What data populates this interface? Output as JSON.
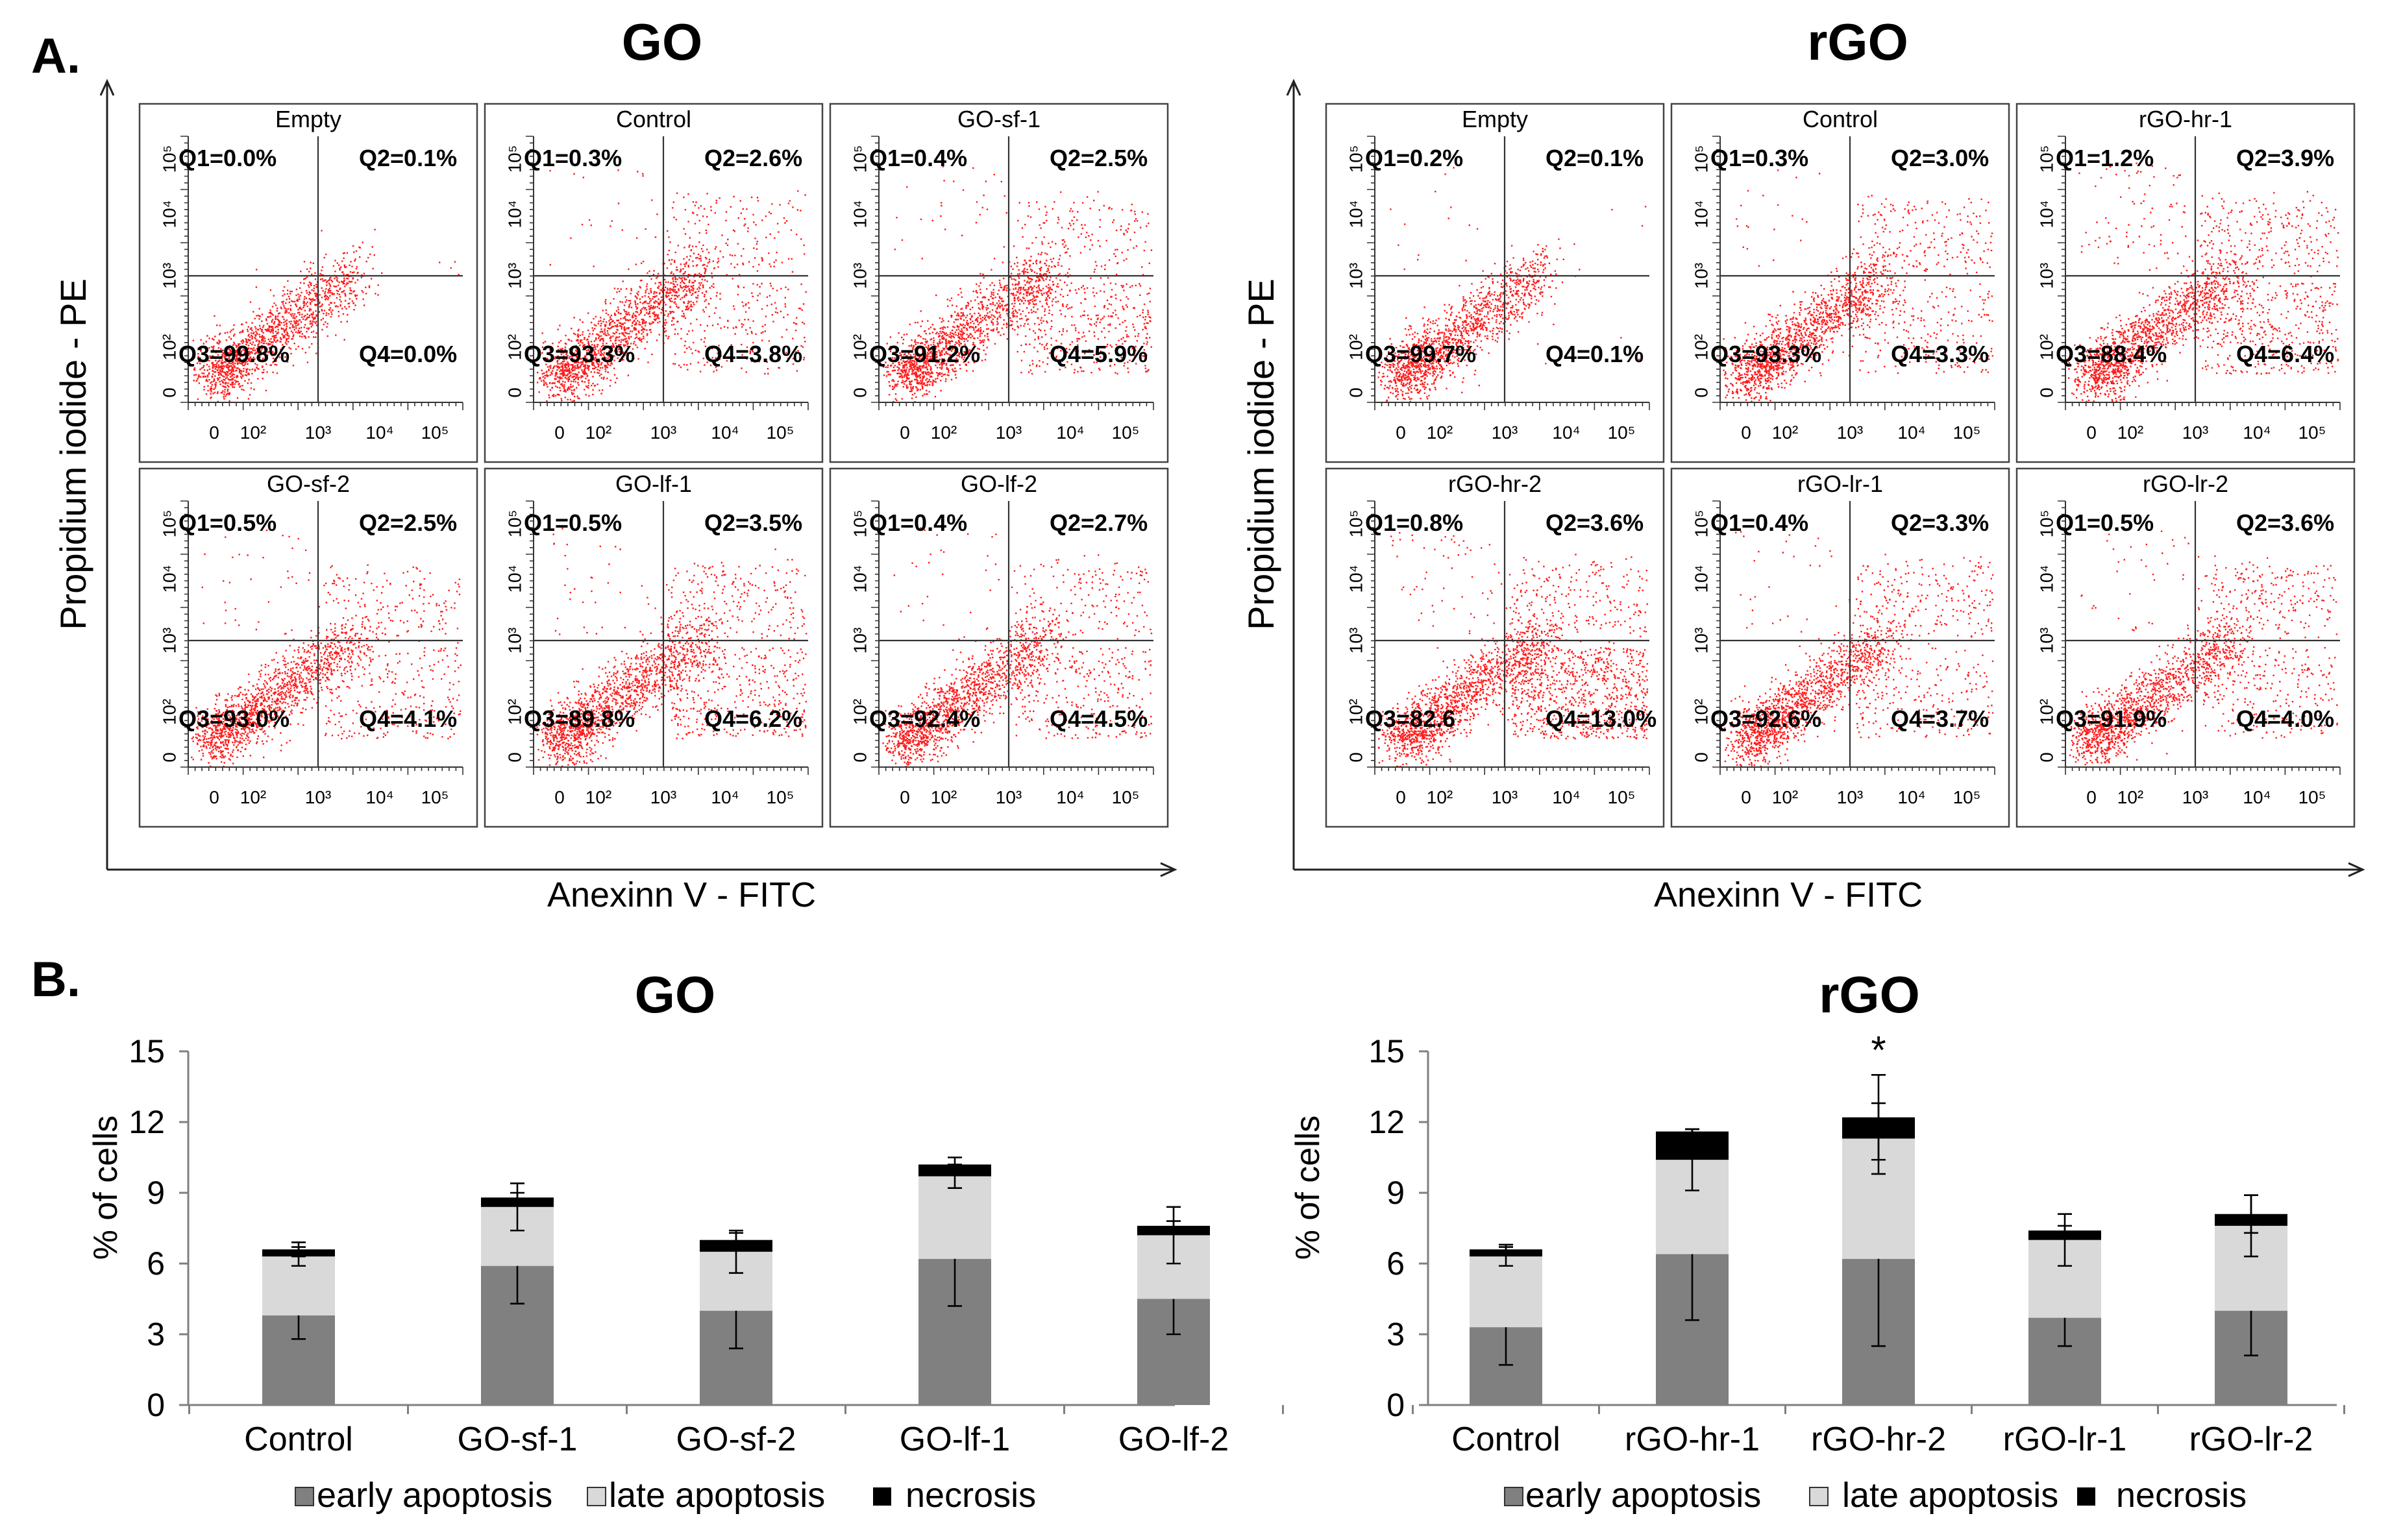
{
  "panel_a": {
    "letter": "A.",
    "tick_labels": [
      "0",
      "10²",
      "10³",
      "10⁴",
      "10⁵"
    ],
    "groups": [
      {
        "title": "GO",
        "ylabel": "Propidium iodide - PE",
        "xlabel": "Anexinn V - FITC",
        "plots": [
          {
            "name": "Empty",
            "q1": "Q1=0.0%",
            "q2": "Q2=0.1%",
            "q3": "Q3=99.8%",
            "q4": "Q4=0.0%"
          },
          {
            "name": "Control",
            "q1": "Q1=0.3%",
            "q2": "Q2=2.6%",
            "q3": "Q3=93.3%",
            "q4": "Q4=3.8%"
          },
          {
            "name": "GO-sf-1",
            "q1": "Q1=0.4%",
            "q2": "Q2=2.5%",
            "q3": "Q3=91.2%",
            "q4": "Q4=5.9%"
          },
          {
            "name": "GO-sf-2",
            "q1": "Q1=0.5%",
            "q2": "Q2=2.5%",
            "q3": "Q3=93.0%",
            "q4": "Q4=4.1%"
          },
          {
            "name": "GO-lf-1",
            "q1": "Q1=0.5%",
            "q2": "Q2=3.5%",
            "q3": "Q3=89.8%",
            "q4": "Q4=6.2%"
          },
          {
            "name": "GO-lf-2",
            "q1": "Q1=0.4%",
            "q2": "Q2=2.7%",
            "q3": "Q3=92.4%",
            "q4": "Q4=4.5%"
          }
        ]
      },
      {
        "title": "rGO",
        "ylabel": "Propidium iodide - PE",
        "xlabel": "Anexinn V - FITC",
        "plots": [
          {
            "name": "Empty",
            "q1": "Q1=0.2%",
            "q2": "Q2=0.1%",
            "q3": "Q3=99.7%",
            "q4": "Q4=0.1%"
          },
          {
            "name": "Control",
            "q1": "Q1=0.3%",
            "q2": "Q2=3.0%",
            "q3": "Q3=93.3%",
            "q4": "Q4=3.3%"
          },
          {
            "name": "rGO-hr-1",
            "q1": "Q1=1.2%",
            "q2": "Q2=3.9%",
            "q3": "Q3=88.4%",
            "q4": "Q4=6.4%"
          },
          {
            "name": "rGO-hr-2",
            "q1": "Q1=0.8%",
            "q2": "Q2=3.6%",
            "q3": "Q3=82.6",
            "q4": "Q4=13.0%"
          },
          {
            "name": "rGO-lr-1",
            "q1": "Q1=0.4%",
            "q2": "Q2=3.3%",
            "q3": "Q3=92.6%",
            "q4": "Q4=3.7%"
          },
          {
            "name": "rGO-lr-2",
            "q1": "Q1=0.5%",
            "q2": "Q2=3.6%",
            "q3": "Q3=91.9%",
            "q4": "Q4=4.0%"
          }
        ]
      }
    ]
  },
  "chart_data": [
    {
      "type": "bar",
      "stacked": true,
      "panel_letter": "B.",
      "title": "GO",
      "ylabel": "% of cells",
      "xlabel": "",
      "ylim": [
        0,
        15
      ],
      "yticks": [
        0,
        3,
        6,
        9,
        12,
        15
      ],
      "categories": [
        "Control",
        "GO-sf-1",
        "GO-sf-2",
        "GO-lf-1",
        "GO-lf-2"
      ],
      "series": [
        {
          "name": "early apoptosis",
          "color": "#808080",
          "values": [
            3.8,
            5.9,
            4.0,
            6.2,
            4.5
          ],
          "errors": [
            1.0,
            1.6,
            1.6,
            2.0,
            1.5
          ]
        },
        {
          "name": "late apoptosis",
          "color": "#d9d9d9",
          "values": [
            2.5,
            2.5,
            2.5,
            3.5,
            2.7
          ],
          "errors": [
            0.4,
            1.0,
            0.9,
            0.5,
            1.2
          ]
        },
        {
          "name": "necrosis",
          "color": "#000000",
          "values": [
            0.3,
            0.4,
            0.5,
            0.5,
            0.4
          ],
          "errors": [
            0.3,
            0.2,
            0.3,
            0.3,
            0.2
          ]
        }
      ],
      "annotations": [],
      "legend": "bottom"
    },
    {
      "type": "bar",
      "stacked": true,
      "title": "rGO",
      "ylabel": "% of cells",
      "xlabel": "",
      "ylim": [
        0,
        15
      ],
      "yticks": [
        0,
        3,
        6,
        9,
        12,
        15
      ],
      "categories": [
        "Control",
        "rGO-hr-1",
        "rGO-hr-2",
        "rGO-lr-1",
        "rGO-lr-2"
      ],
      "series": [
        {
          "name": "early apoptosis",
          "color": "#808080",
          "values": [
            3.3,
            6.4,
            6.2,
            3.7,
            4.0
          ],
          "errors": [
            1.6,
            2.8,
            3.7,
            1.2,
            1.9
          ]
        },
        {
          "name": "late apoptosis",
          "color": "#d9d9d9",
          "values": [
            3.0,
            4.0,
            5.1,
            3.3,
            3.6
          ],
          "errors": [
            0.4,
            1.3,
            1.5,
            1.1,
            1.3
          ]
        },
        {
          "name": "necrosis",
          "color": "#000000",
          "values": [
            0.3,
            1.2,
            0.9,
            0.4,
            0.5
          ],
          "errors": [
            0.2,
            0.1,
            1.8,
            0.2,
            0.8
          ]
        }
      ],
      "annotations": [
        {
          "category": "rGO-hr-2",
          "text": "*"
        }
      ],
      "legend": "bottom"
    }
  ]
}
